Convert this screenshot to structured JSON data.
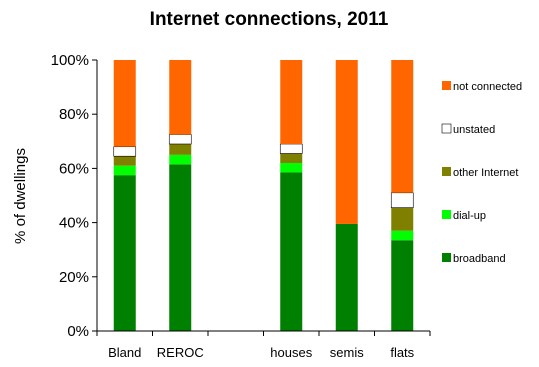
{
  "chart_data": {
    "type": "bar",
    "stacked": true,
    "title": "Internet connections, 2011",
    "ylabel": "% of dwellings",
    "xlabel": "",
    "ylim": [
      0,
      100
    ],
    "y_ticks": [
      "0%",
      "20%",
      "40%",
      "60%",
      "80%",
      "100%"
    ],
    "grid": false,
    "legend_position": "right",
    "categories": [
      "Bland",
      "REROC",
      "",
      "houses",
      "semis",
      "flats"
    ],
    "series": [
      {
        "name": "broadband",
        "color": "#008000",
        "values": [
          57.5,
          61.5,
          0,
          58.5,
          39.5,
          33.5
        ]
      },
      {
        "name": "dial-up",
        "color": "#00ff00",
        "values": [
          3.5,
          3.5,
          0,
          3.5,
          0,
          3.5
        ]
      },
      {
        "name": "other Internet",
        "color": "#808000",
        "values": [
          3.5,
          4,
          0,
          3.5,
          0,
          8.5
        ]
      },
      {
        "name": "unstated",
        "color": "#ffffff",
        "values": [
          3.5,
          3.5,
          0,
          3.5,
          0,
          5.5
        ]
      },
      {
        "name": "not connected",
        "color": "#ff6600",
        "values": [
          32,
          27.5,
          0,
          31,
          60.5,
          49
        ]
      }
    ]
  }
}
